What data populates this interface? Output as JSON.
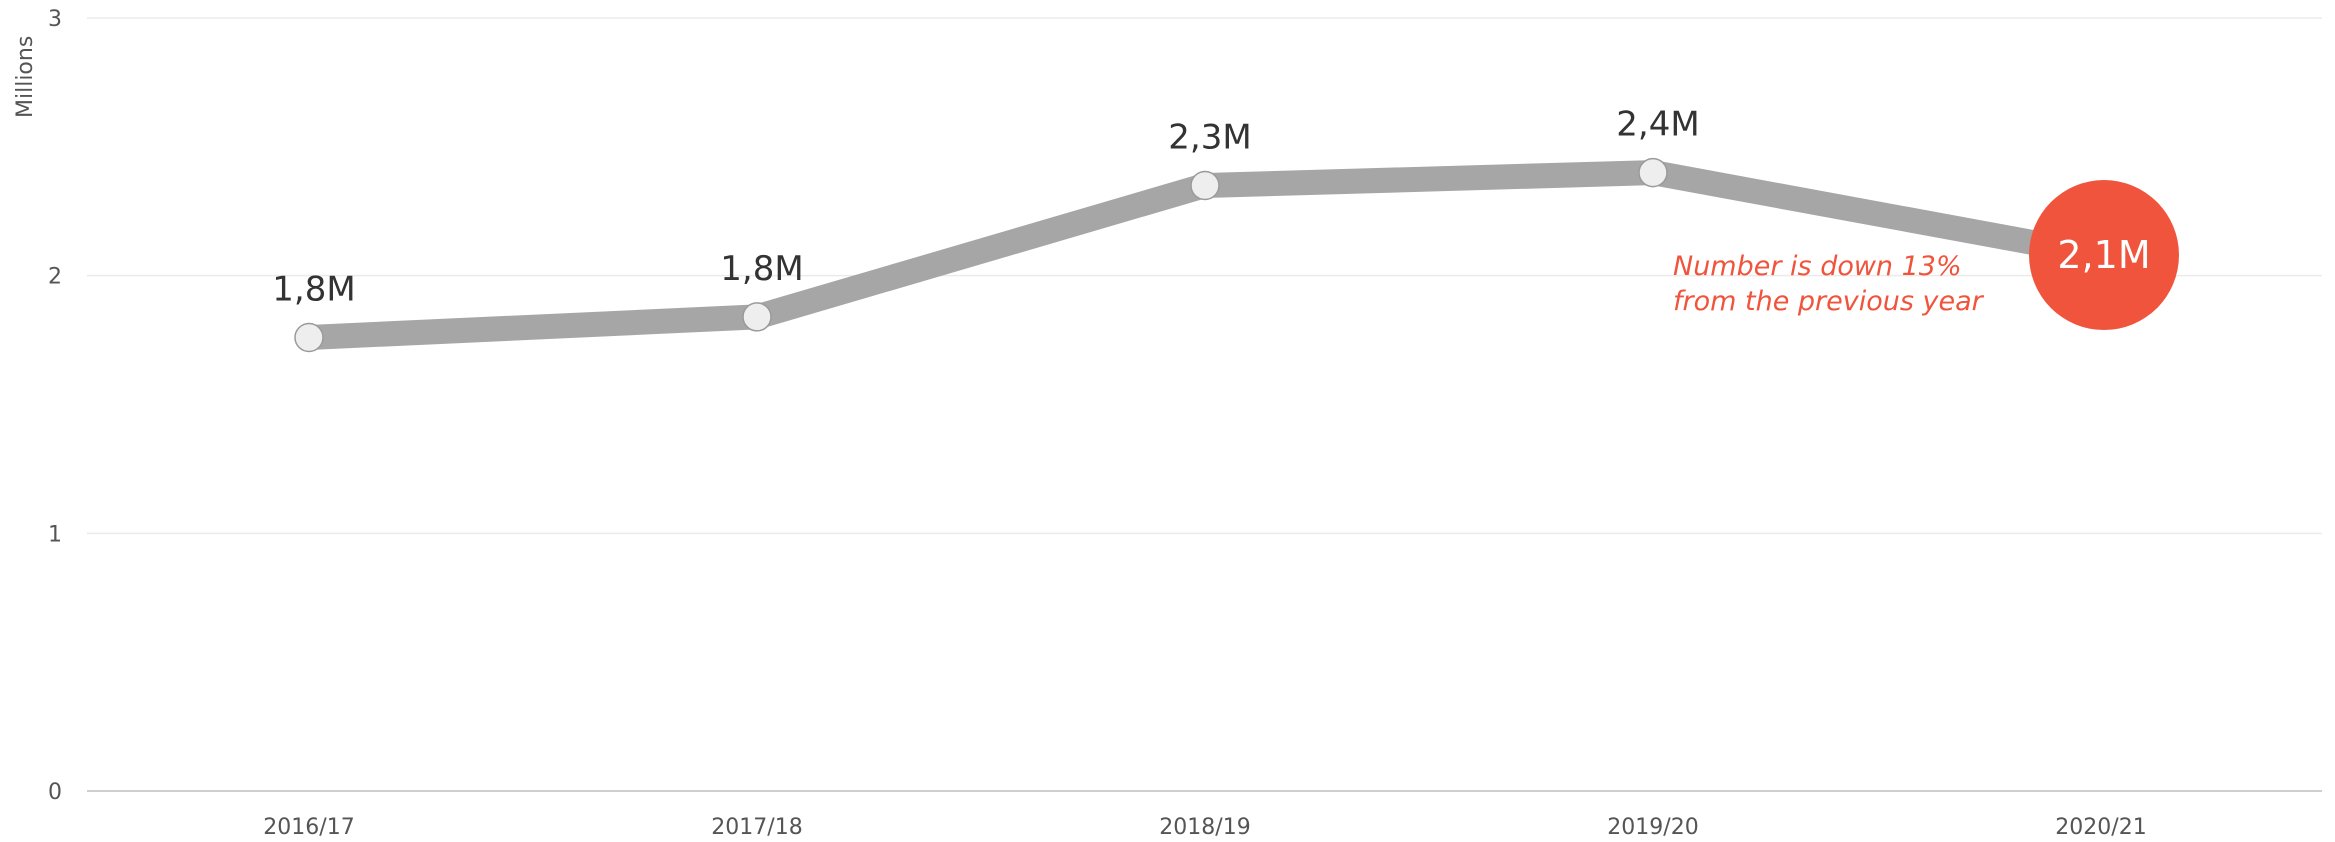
{
  "chart_data": {
    "type": "line",
    "categories": [
      "2016/17",
      "2017/18",
      "2018/19",
      "2019/20",
      "2020/21"
    ],
    "values": [
      1.76,
      1.84,
      2.35,
      2.4,
      2.08
    ],
    "data_labels": [
      "1,8M",
      "1,8M",
      "2,3M",
      "2,4M",
      "2,1M"
    ],
    "ylabel": "Millions",
    "ylim": [
      0,
      3
    ],
    "yticks": [
      "0",
      "1",
      "2",
      "3"
    ],
    "grid": true,
    "highlight_index": 4,
    "annotation": [
      "Number is down 13%",
      "from the previous year"
    ],
    "colors": {
      "line": "#a6a6a6",
      "highlight": "#f0543c",
      "marker_fill": "#eeeeee",
      "grid": "#ebebeb",
      "axis": "#cfcfcf"
    }
  }
}
